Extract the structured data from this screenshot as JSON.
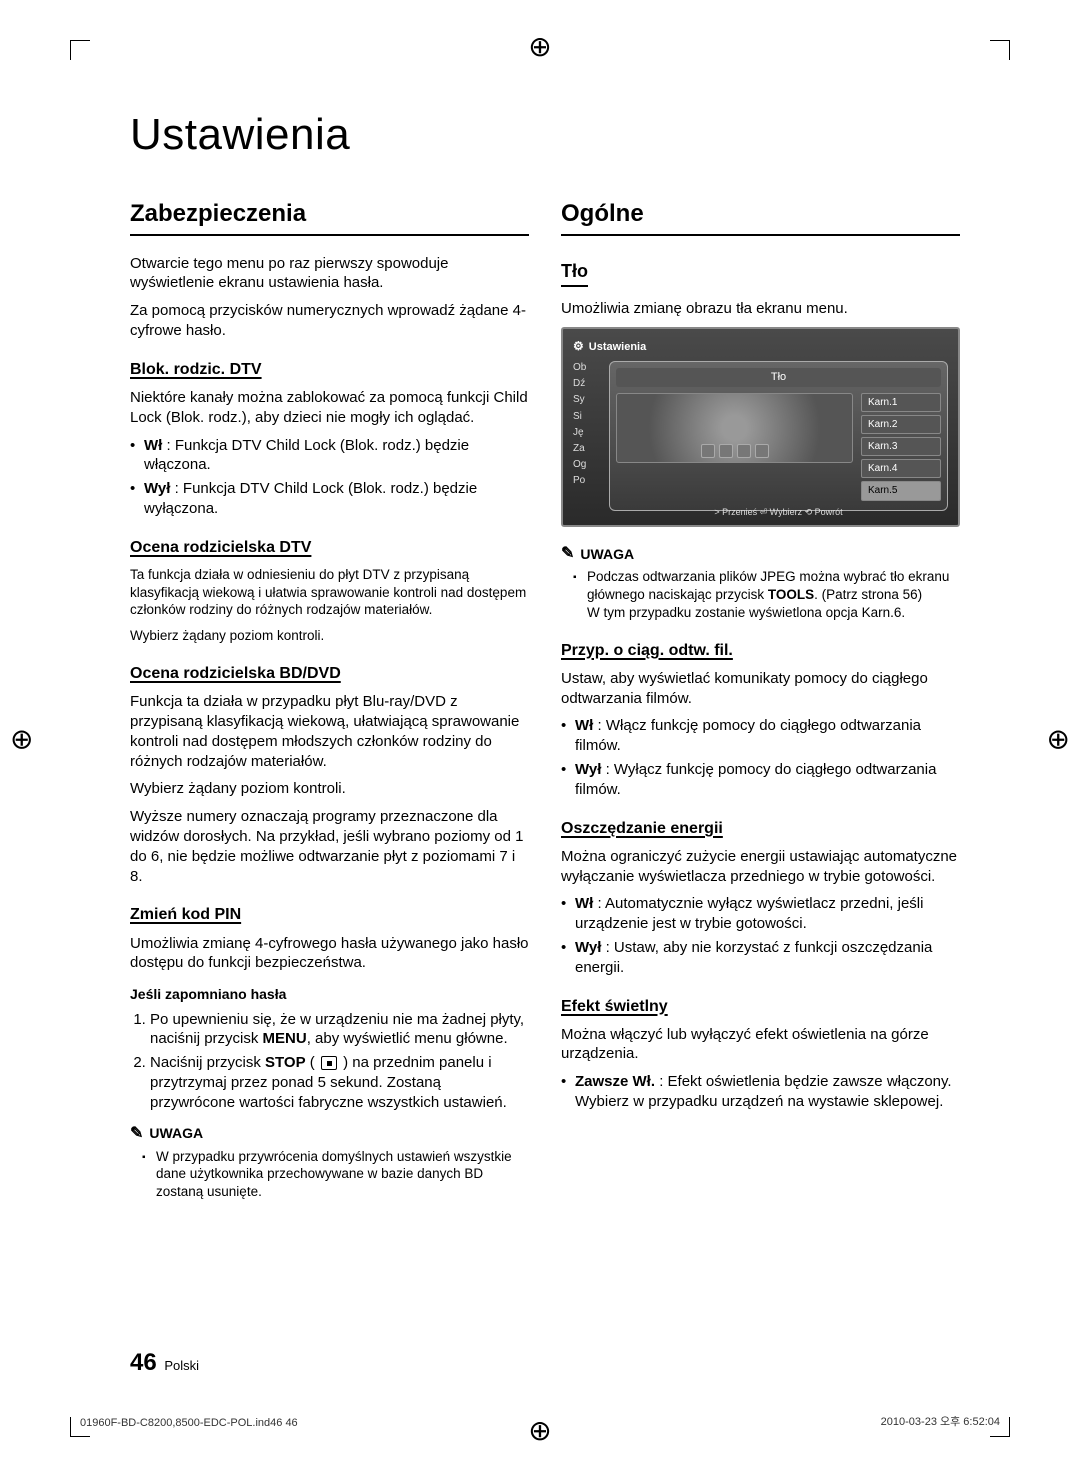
{
  "page": {
    "title": "Ustawienia",
    "pageNumber": "46",
    "pageLang": "Polski",
    "footerLeft": "01960F-BD-C8200,8500-EDC-POL.ind46   46",
    "footerRight": "2010-03-23   오후 6:52:04"
  },
  "left": {
    "h2": "Zabezpieczenia",
    "intro1": "Otwarcie tego menu po raz pierwszy spowoduje wyświetlenie ekranu ustawienia hasła.",
    "intro2": "Za pomocą przycisków numerycznych wprowadź żądane 4-cyfrowe hasło.",
    "s1": {
      "h": "Blok. rodzic. DTV",
      "p": "Niektóre kanały można zablokować za pomocą funkcji Child Lock (Blok. rodz.), aby dzieci nie mogły ich oglądać.",
      "b1a": "Wł",
      "b1b": " : Funkcja DTV Child Lock (Blok. rodz.) będzie włączona.",
      "b2a": "Wył",
      "b2b": " : Funkcja DTV Child Lock (Blok. rodz.) będzie wyłączona."
    },
    "s2": {
      "h": "Ocena rodzicielska DTV",
      "p1": "Ta funkcja działa w odniesieniu do płyt DTV z przypisaną klasyfikacją wiekową i ułatwia sprawowanie kontroli nad dostępem członków rodziny do różnych rodzajów materiałów.",
      "p2": "Wybierz żądany poziom kontroli."
    },
    "s3": {
      "h": "Ocena rodzicielska BD/DVD",
      "p1": "Funkcja ta działa w przypadku płyt Blu-ray/DVD z przypisaną klasyfikacją wiekową, ułatwiającą sprawowanie kontroli nad dostępem młodszych członków rodziny do różnych rodzajów materiałów.",
      "p2": "Wybierz żądany poziom kontroli.",
      "p3": "Wyższe numery oznaczają programy przeznaczone dla widzów dorosłych. Na przykład, jeśli wybrano poziomy od 1 do 6, nie będzie możliwe odtwarzanie płyt z poziomami 7 i 8."
    },
    "s4": {
      "h": "Zmień kod PIN",
      "p": "Umożliwia zmianę 4-cyfrowego hasła używanego jako hasło dostępu do funkcji bezpieczeństwa.",
      "h4": "Jeśli zapomniano hasła",
      "o1a": "Po upewnieniu się, że w urządzeniu nie ma żadnej płyty, naciśnij przycisk ",
      "o1b": "MENU",
      "o1c": ", aby wyświetlić menu główne.",
      "o2a": "Naciśnij przycisk ",
      "o2b": "STOP",
      "o2c": " na przednim panelu i przytrzymaj przez ponad 5 sekund. Zostaną przywrócone wartości fabryczne wszystkich ustawień.",
      "noteLabel": "UWAGA",
      "note1": "W przypadku przywrócenia domyślnych ustawień wszystkie dane użytkownika przechowywane w bazie danych BD zostaną usunięte."
    }
  },
  "right": {
    "h2": "Ogólne",
    "s1": {
      "h": "Tło",
      "p": "Umożliwia zmianę obrazu tła ekranu menu."
    },
    "ui": {
      "header": "Ustawienia",
      "panelTitle": "Tło",
      "side": [
        "Ob",
        "Dź",
        "Sy",
        "Si",
        "Ję",
        "Za",
        "Og",
        "Po"
      ],
      "opts": [
        "Karn.1",
        "Karn.2",
        "Karn.3",
        "Karn.4",
        "Karn.5"
      ],
      "selected": 4,
      "footer": "> Przenieś   ⏎ Wybierz   ⟲ Powrót"
    },
    "note": {
      "label": "UWAGA",
      "n1a": "Podczas odtwarzania plików JPEG można wybrać tło ekranu głównego naciskając przycisk ",
      "n1b": "TOOLS",
      "n1c": ". (Patrz strona 56)",
      "n1d": "W tym przypadku zostanie wyświetlona opcja Karn.6."
    },
    "s2": {
      "h": "Przyp. o ciąg. odtw. fil.",
      "p": "Ustaw, aby wyświetlać komunikaty pomocy do ciągłego odtwarzania filmów.",
      "b1a": "Wł",
      "b1b": " : Włącz funkcję pomocy do ciągłego odtwarzania filmów.",
      "b2a": "Wył",
      "b2b": " : Wyłącz funkcję pomocy do ciągłego odtwarzania filmów."
    },
    "s3": {
      "h": "Oszczędzanie energii",
      "p": "Można ograniczyć zużycie energii ustawiając automatyczne wyłączanie wyświetlacza przedniego w trybie gotowości.",
      "b1a": "Wł",
      "b1b": " : Automatycznie wyłącz wyświetlacz przedni, jeśli urządzenie jest w trybie gotowości.",
      "b2a": "Wył",
      "b2b": " : Ustaw, aby nie korzystać z funkcji oszczędzania energii."
    },
    "s4": {
      "h": "Efekt świetlny",
      "p": "Można włączyć lub wyłączyć efekt oświetlenia na górze urządzenia.",
      "b1a": "Zawsze Wł.",
      "b1b": " : Efekt oświetlenia będzie zawsze włączony.",
      "b1c": "Wybierz w przypadku urządzeń na wystawie sklepowej."
    }
  }
}
